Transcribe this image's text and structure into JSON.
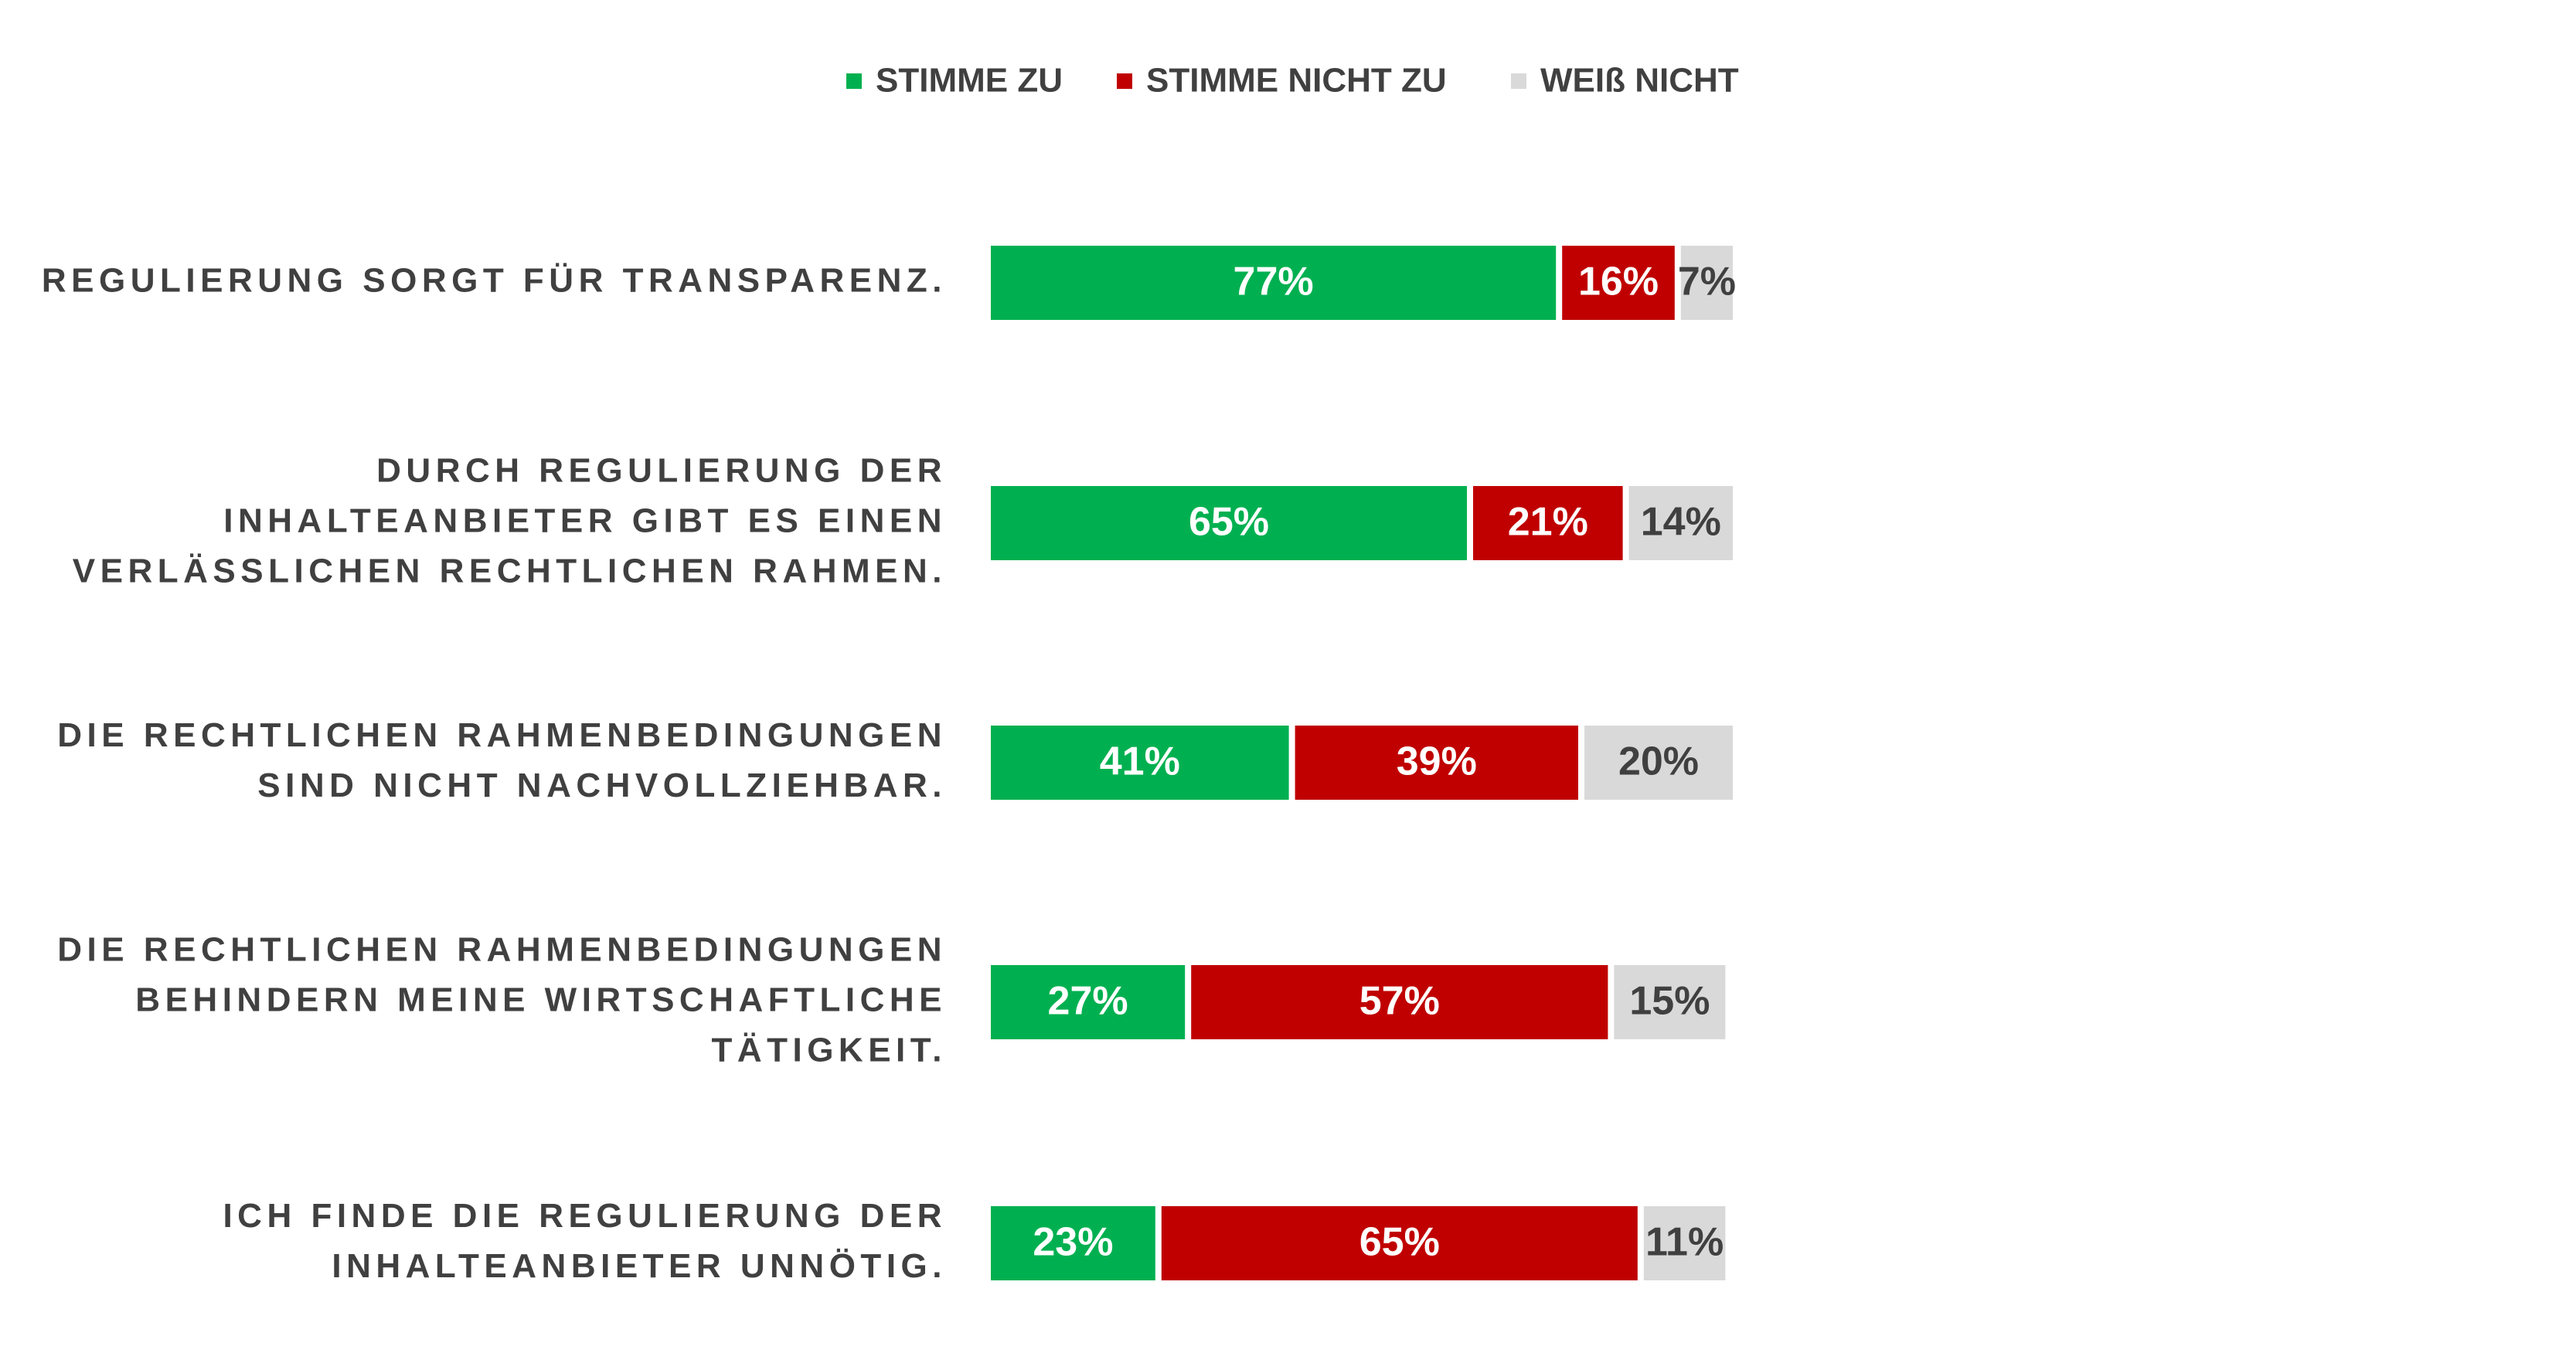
{
  "chart_data": {
    "type": "bar",
    "orientation": "horizontal",
    "stacked": true,
    "normalized": "100%",
    "legend_position": "top",
    "grid": false,
    "categories": [
      [
        "REGULIERUNG SORGT FÜR TRANSPARENZ."
      ],
      [
        "DURCH REGULIERUNG DER",
        "INHALTEANBIETER GIBT ES EINEN",
        "VERLÄSSLICHEN RECHTLICHEN RAHMEN."
      ],
      [
        "DIE RECHTLICHEN RAHMENBEDINGUNGEN",
        "SIND NICHT NACHVOLLZIEHBAR."
      ],
      [
        "DIE RECHTLICHEN RAHMENBEDINGUNGEN",
        "BEHINDERN MEINE WIRTSCHAFTLICHE",
        "TÄTIGKEIT."
      ],
      [
        "ICH FINDE DIE REGULIERUNG DER",
        "INHALTEANBIETER UNNÖTIG."
      ]
    ],
    "series": [
      {
        "name": "STIMME ZU",
        "color": "#00b050",
        "label_color": "#ffffff",
        "values": [
          77,
          65,
          41,
          27,
          23
        ]
      },
      {
        "name": "STIMME NICHT ZU",
        "color": "#c00000",
        "label_color": "#ffffff",
        "values": [
          16,
          21,
          39,
          57,
          65
        ]
      },
      {
        "name": "WEIß NICHT",
        "color": "#d9d9d9",
        "label_color": "#404040",
        "values": [
          7,
          14,
          20,
          15,
          11
        ]
      }
    ],
    "value_suffix": "%"
  }
}
